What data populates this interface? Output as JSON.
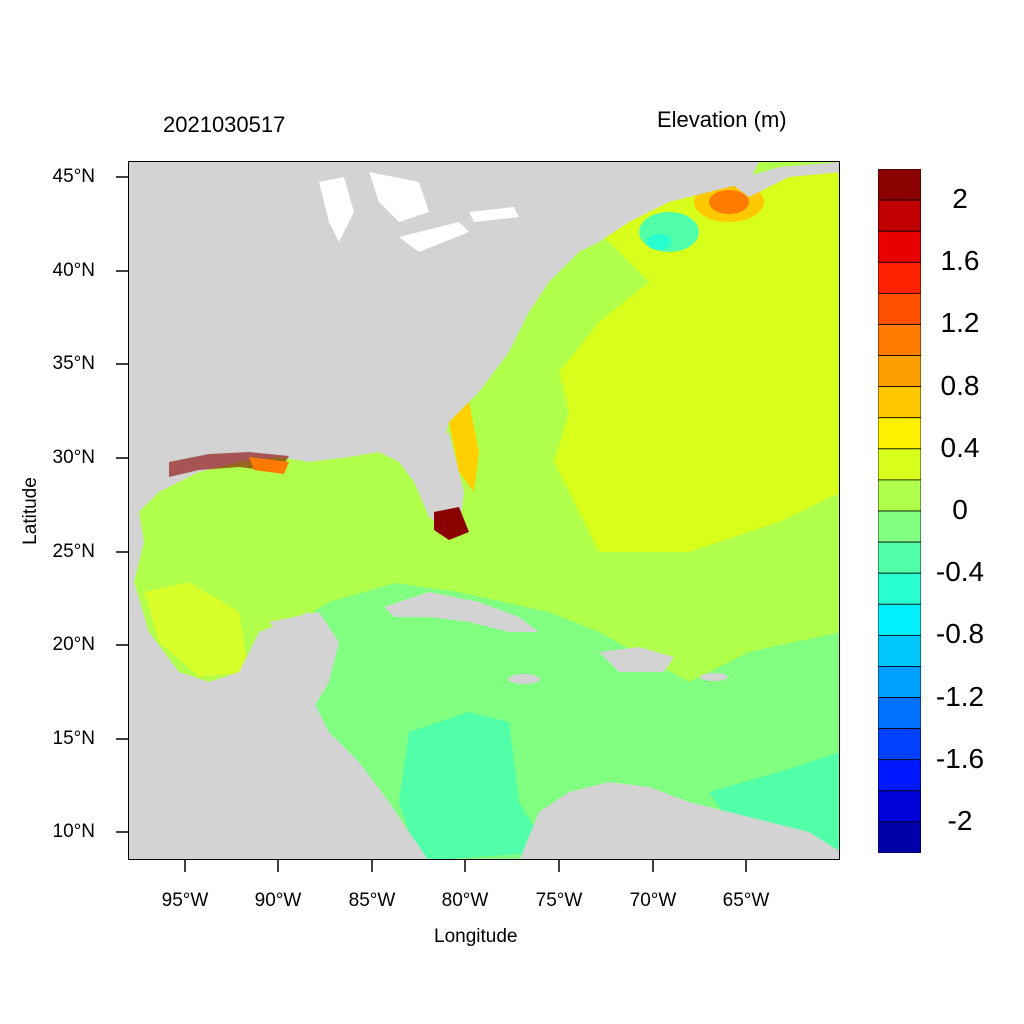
{
  "header": {
    "timestamp": "2021030517",
    "variable": "Elevation (m)"
  },
  "axes": {
    "xlabel": "Longitude",
    "ylabel": "Latitude",
    "lat_ticks": [
      "45°N",
      "40°N",
      "35°N",
      "30°N",
      "25°N",
      "20°N",
      "15°N",
      "10°N"
    ],
    "lon_ticks": [
      "95°W",
      "90°W",
      "85°W",
      "80°W",
      "75°W",
      "70°W",
      "65°W"
    ]
  },
  "colorbar": {
    "labels": [
      "2",
      "1.6",
      "1.2",
      "0.8",
      "0.4",
      "0",
      "-0.4",
      "-0.8",
      "-1.2",
      "-1.6",
      "-2"
    ],
    "colors": [
      "#8b0000",
      "#c00000",
      "#e80000",
      "#ff2000",
      "#ff5000",
      "#ff7a00",
      "#ff9e00",
      "#ffc800",
      "#fff000",
      "#d8ff1c",
      "#b0ff4a",
      "#80ff80",
      "#50ffa8",
      "#28ffd0",
      "#00f0ff",
      "#00c8ff",
      "#00a0ff",
      "#0070ff",
      "#0040ff",
      "#0018ff",
      "#0000d8",
      "#0000a8"
    ]
  },
  "map": {
    "land_color": "#d3d3d3",
    "lake_color": "#ffffff",
    "ocean_colors": {
      "atlantic": "#b0ff4a",
      "gulf": "#d8ff2a",
      "caribbean": "#80ff80",
      "caribbean_south": "#50ffa8",
      "coastal_max": "#8b0000"
    }
  }
}
